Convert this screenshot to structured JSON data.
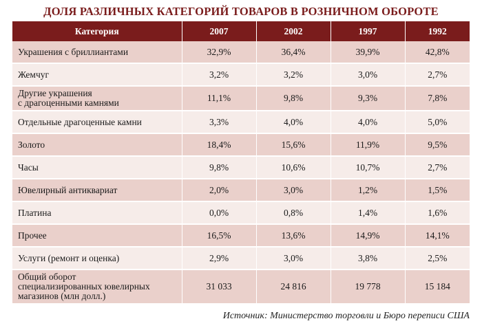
{
  "title": "ДОЛЯ РАЗЛИЧНЫХ КАТЕГОРИЙ ТОВАРОВ В РОЗНИЧНОМ ОБОРОТЕ",
  "table": {
    "headers": [
      "Категория",
      "2007",
      "2002",
      "1997",
      "1992"
    ],
    "rows": [
      {
        "category": [
          "Украшения с бриллиантами"
        ],
        "values": [
          "32,9%",
          "36,4%",
          "39,9%",
          "42,8%"
        ]
      },
      {
        "category": [
          "Жемчуг"
        ],
        "values": [
          "3,2%",
          "3,2%",
          "3,0%",
          "2,7%"
        ]
      },
      {
        "category": [
          "Другие украшения",
          "с драгоценными камнями"
        ],
        "values": [
          "11,1%",
          "9,8%",
          "9,3%",
          "7,8%"
        ]
      },
      {
        "category": [
          "Отдельные драгоценные камни"
        ],
        "values": [
          "3,3%",
          "4,0%",
          "4,0%",
          "5,0%"
        ]
      },
      {
        "category": [
          "Золото"
        ],
        "values": [
          "18,4%",
          "15,6%",
          "11,9%",
          "9,5%"
        ]
      },
      {
        "category": [
          "Часы"
        ],
        "values": [
          "9,8%",
          "10,6%",
          "10,7%",
          "2,7%"
        ]
      },
      {
        "category": [
          "Ювелирный антиквариат"
        ],
        "values": [
          "2,0%",
          "3,0%",
          "1,2%",
          "1,5%"
        ]
      },
      {
        "category": [
          "Платина"
        ],
        "values": [
          "0,0%",
          "0,8%",
          "1,4%",
          "1,6%"
        ]
      },
      {
        "category": [
          "Прочее"
        ],
        "values": [
          "16,5%",
          "13,6%",
          "14,9%",
          "14,1%"
        ]
      },
      {
        "category": [
          "Услуги (ремонт и оценка)"
        ],
        "values": [
          "2,9%",
          "3,0%",
          "3,8%",
          "2,5%"
        ]
      },
      {
        "category": [
          "Общий оборот",
          "специализированных ювелирных",
          "магазинов (млн долл.)"
        ],
        "values": [
          "31 033",
          "24 816",
          "19 778",
          "15 184"
        ]
      }
    ]
  },
  "source": "Источник: Министерство торговли и Бюро переписи США",
  "colors": {
    "accent": "#7a1c1c",
    "row_dark": "#ead0cb",
    "row_light": "#f6ece9"
  }
}
